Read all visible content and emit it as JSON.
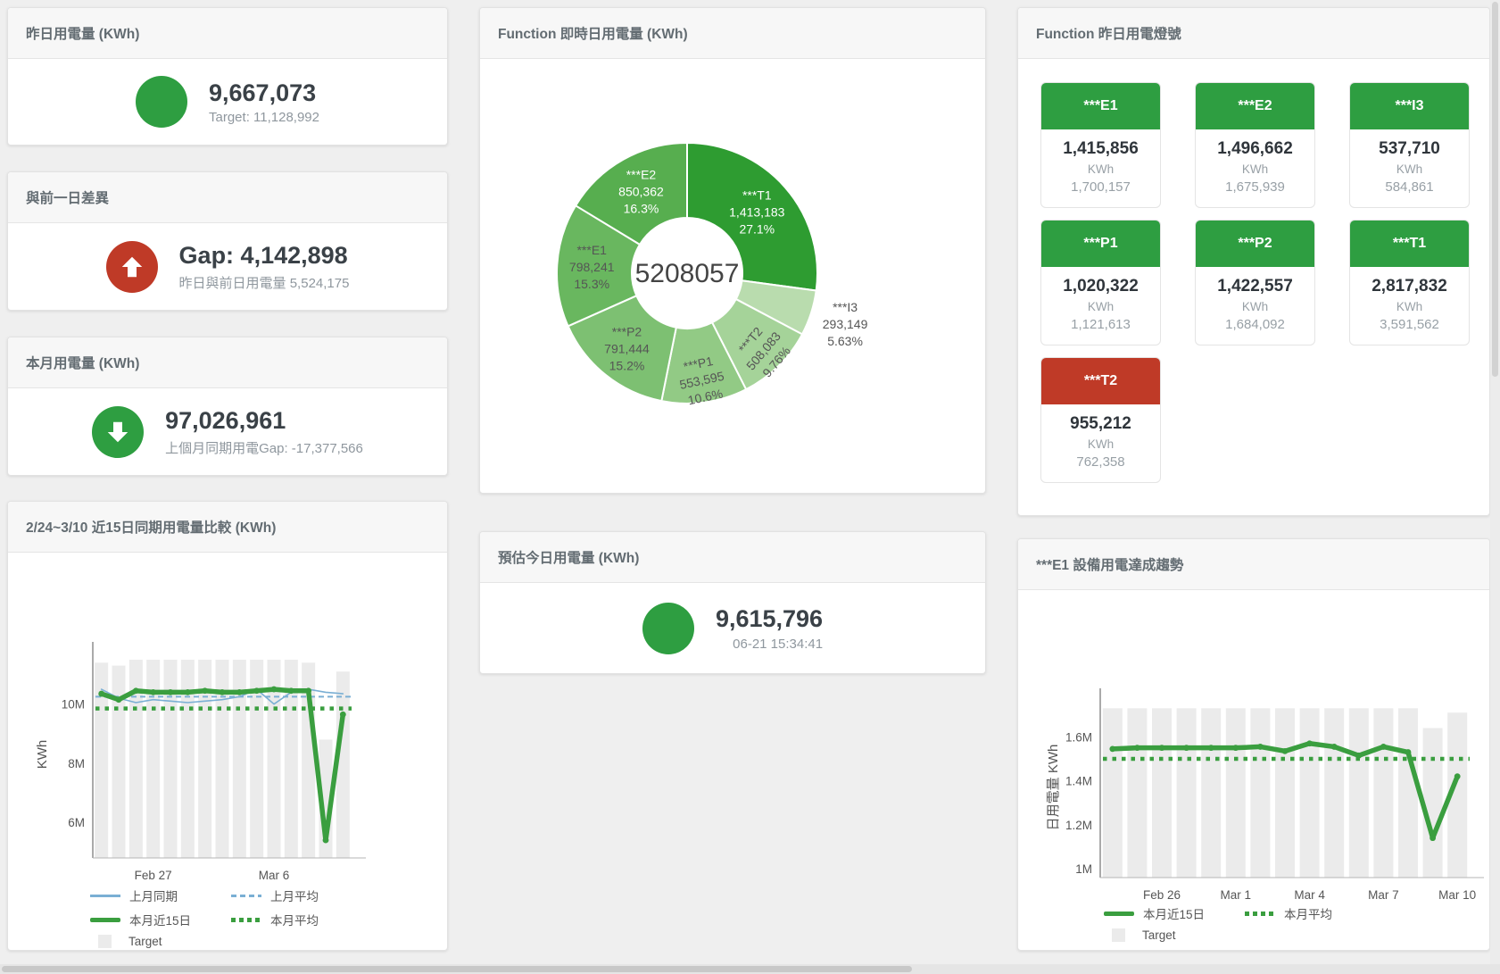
{
  "colors": {
    "green": "#2e9e41",
    "red": "#bf3a27",
    "blue_line": "#7aafd4",
    "green_line": "#3a9e3f",
    "target_bar": "#ebebeb"
  },
  "cards": {
    "yesterday": {
      "title": "昨日用電量 (KWh)",
      "value": "9,667,073",
      "sub": "Target: 11,128,992"
    },
    "gap": {
      "title": "與前一日差異",
      "value": "Gap: 4,142,898",
      "sub": "昨日與前日用電量 5,524,175"
    },
    "month": {
      "title": "本月用電量 (KWh)",
      "value": "97,026,961",
      "sub": "上個月同期用電Gap: -17,377,566"
    },
    "estimate": {
      "title": "預估今日用電量 (KWh)",
      "value": "9,615,796",
      "sub": "06-21 15:34:41"
    },
    "donut": {
      "title": "Function 即時日用電量 (KWh)"
    },
    "lights": {
      "title": "Function 昨日用電燈號"
    },
    "compare": {
      "title": "2/24~3/10 近15日同期用電量比較 (KWh)"
    },
    "trend": {
      "title": "***E1 設備用電達成趨勢"
    }
  },
  "legend": {
    "last_month": "上月同期",
    "last_month_avg": "上月平均",
    "this_month": "本月近15日",
    "this_month_avg": "本月平均",
    "target": "Target"
  },
  "lights_tiles": [
    {
      "name": "***E1",
      "value": "1,415,856",
      "unit": "KWh",
      "target": "1,700,157",
      "status": "green"
    },
    {
      "name": "***E2",
      "value": "1,496,662",
      "unit": "KWh",
      "target": "1,675,939",
      "status": "green"
    },
    {
      "name": "***I3",
      "value": "537,710",
      "unit": "KWh",
      "target": "584,861",
      "status": "green"
    },
    {
      "name": "***P1",
      "value": "1,020,322",
      "unit": "KWh",
      "target": "1,121,613",
      "status": "green"
    },
    {
      "name": "***P2",
      "value": "1,422,557",
      "unit": "KWh",
      "target": "1,684,092",
      "status": "green"
    },
    {
      "name": "***T1",
      "value": "2,817,832",
      "unit": "KWh",
      "target": "3,591,562",
      "status": "green"
    },
    {
      "name": "***T2",
      "value": "955,212",
      "unit": "KWh",
      "target": "762,358",
      "status": "red"
    }
  ],
  "chart_data": [
    {
      "id": "realtime_donut",
      "type": "pie",
      "title": "Function 即時日用電量 (KWh)",
      "center_total": "5208057",
      "unit": "KWh",
      "slices": [
        {
          "name": "***T1",
          "value": 1413183,
          "pct": "27.1%",
          "color": "#2e9c31",
          "label_color": "#ffffff",
          "label_pos": "inside",
          "label_r": 104,
          "rotate": 0
        },
        {
          "name": "***I3",
          "value": 293149,
          "pct": "5.63%",
          "color": "#b9dcae",
          "label_color": "#555555",
          "label_pos": "outside",
          "label_r": 186,
          "rotate": 0
        },
        {
          "name": "***T2",
          "value": 508083,
          "pct": "9.76%",
          "color": "#a5d399",
          "label_color": "#555555",
          "label_pos": "inside",
          "label_r": 122,
          "rotate": -50
        },
        {
          "name": "***P1",
          "value": 553595,
          "pct": "10.6%",
          "color": "#92ca85",
          "label_color": "#555555",
          "label_pos": "inside",
          "label_r": 121,
          "rotate": -12
        },
        {
          "name": "***P2",
          "value": 791444,
          "pct": "15.2%",
          "color": "#7dc072",
          "label_color": "#555555",
          "label_pos": "inside",
          "label_r": 108,
          "rotate": 0
        },
        {
          "name": "***E1",
          "value": 798241,
          "pct": "15.3%",
          "color": "#69b75f",
          "label_color": "#555555",
          "label_pos": "inside",
          "label_r": 107,
          "rotate": 0
        },
        {
          "name": "***E2",
          "value": 850362,
          "pct": "16.3%",
          "color": "#57ae4f",
          "label_color": "#ffffff",
          "label_pos": "inside",
          "label_r": 105,
          "rotate": 0
        }
      ]
    },
    {
      "id": "compare15",
      "type": "bar+line",
      "title": "2/24~3/10 近15日同期用電量比較 (KWh)",
      "unit": "million KWh",
      "ylabel": "KWh",
      "yticks": [
        "6M",
        "8M",
        "10M"
      ],
      "ytick_values": [
        6,
        8,
        10
      ],
      "ylim": [
        4.8,
        11.8
      ],
      "categories": [
        "2/24",
        "2/25",
        "2/26",
        "2/27",
        "2/28",
        "3/1",
        "3/2",
        "3/3",
        "3/4",
        "3/5",
        "3/6",
        "3/7",
        "3/8",
        "3/9",
        "3/10"
      ],
      "xticks": [
        {
          "label": "Feb 27",
          "index": 3
        },
        {
          "label": "Mar 6",
          "index": 10
        }
      ],
      "series": [
        {
          "name": "Target",
          "type": "bar",
          "color": "#ebebeb",
          "values": [
            11.4,
            11.3,
            11.5,
            11.5,
            11.5,
            11.5,
            11.5,
            11.5,
            11.5,
            11.5,
            11.5,
            11.5,
            11.4,
            8.8,
            11.1
          ]
        },
        {
          "name": "上月平均",
          "type": "hline",
          "style": "dashed",
          "color": "#7aafd4",
          "value": 10.25
        },
        {
          "name": "本月平均",
          "type": "hline",
          "style": "dotted",
          "color": "#3a9e3f",
          "value": 9.85
        },
        {
          "name": "上月同期",
          "type": "line",
          "style": "solid-thin",
          "color": "#7aafd4",
          "values": [
            10.5,
            10.2,
            10.05,
            10.15,
            10.1,
            10.05,
            10.1,
            10.15,
            10.25,
            10.5,
            10.0,
            10.4,
            10.5,
            10.4,
            10.35
          ]
        },
        {
          "name": "本月近15日",
          "type": "line",
          "style": "solid-thick",
          "color": "#3a9e3f",
          "values": [
            10.35,
            10.15,
            10.45,
            10.4,
            10.4,
            10.4,
            10.45,
            10.4,
            10.4,
            10.45,
            10.5,
            10.45,
            10.45,
            5.4,
            9.65
          ]
        }
      ]
    },
    {
      "id": "e1_trend",
      "type": "bar+line",
      "title": "***E1 設備用電達成趨勢",
      "unit": "million KWh",
      "ylabel": "日用電量 KWh",
      "yticks": [
        "1M",
        "1.2M",
        "1.4M",
        "1.6M"
      ],
      "ytick_values": [
        1.0,
        1.2,
        1.4,
        1.6
      ],
      "ylim": [
        0.96,
        1.78
      ],
      "categories": [
        "2/24",
        "2/25",
        "2/26",
        "2/27",
        "2/28",
        "3/1",
        "3/2",
        "3/3",
        "3/4",
        "3/5",
        "3/6",
        "3/7",
        "3/8",
        "3/9",
        "3/10"
      ],
      "xticks": [
        {
          "label": "Feb 26",
          "index": 2
        },
        {
          "label": "Mar 1",
          "index": 5
        },
        {
          "label": "Mar 4",
          "index": 8
        },
        {
          "label": "Mar 7",
          "index": 11
        },
        {
          "label": "Mar 10",
          "index": 14
        }
      ],
      "series": [
        {
          "name": "Target",
          "type": "bar",
          "color": "#ebebeb",
          "values": [
            1.73,
            1.73,
            1.73,
            1.73,
            1.73,
            1.73,
            1.73,
            1.73,
            1.73,
            1.73,
            1.73,
            1.73,
            1.73,
            1.64,
            1.71
          ]
        },
        {
          "name": "本月平均",
          "type": "hline",
          "style": "dotted",
          "color": "#3a9e3f",
          "value": 1.5
        },
        {
          "name": "本月近15日",
          "type": "line",
          "style": "solid-thick",
          "color": "#3a9e3f",
          "values": [
            1.545,
            1.55,
            1.55,
            1.55,
            1.55,
            1.55,
            1.555,
            1.535,
            1.57,
            1.555,
            1.515,
            1.555,
            1.53,
            1.14,
            1.42
          ]
        }
      ]
    }
  ]
}
